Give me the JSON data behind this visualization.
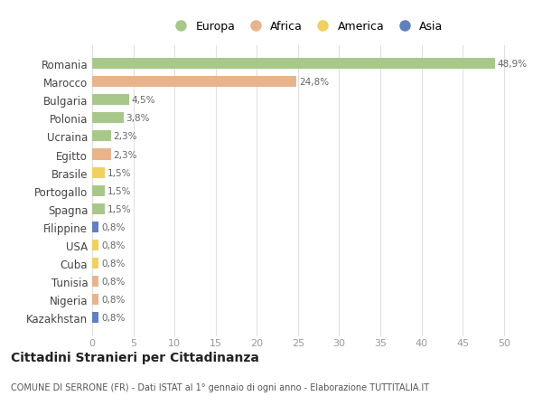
{
  "countries": [
    "Romania",
    "Marocco",
    "Bulgaria",
    "Polonia",
    "Ucraina",
    "Egitto",
    "Brasile",
    "Portogallo",
    "Spagna",
    "Filippine",
    "USA",
    "Cuba",
    "Tunisia",
    "Nigeria",
    "Kazakhstan"
  ],
  "values": [
    48.9,
    24.8,
    4.5,
    3.8,
    2.3,
    2.3,
    1.5,
    1.5,
    1.5,
    0.8,
    0.8,
    0.8,
    0.8,
    0.8,
    0.8
  ],
  "labels": [
    "48,9%",
    "24,8%",
    "4,5%",
    "3,8%",
    "2,3%",
    "2,3%",
    "1,5%",
    "1,5%",
    "1,5%",
    "0,8%",
    "0,8%",
    "0,8%",
    "0,8%",
    "0,8%",
    "0,8%"
  ],
  "colors": [
    "#a8c88a",
    "#e8b48c",
    "#a8c88a",
    "#a8c88a",
    "#a8c88a",
    "#e8b48c",
    "#f0d060",
    "#a8c88a",
    "#a8c88a",
    "#6080c0",
    "#f0d060",
    "#f0d060",
    "#e8b48c",
    "#e8b48c",
    "#6080c0"
  ],
  "legend_labels": [
    "Europa",
    "Africa",
    "America",
    "Asia"
  ],
  "legend_colors": [
    "#a8c88a",
    "#e8b48c",
    "#f0d060",
    "#6080c0"
  ],
  "xlim": [
    0,
    52
  ],
  "xticks": [
    0,
    5,
    10,
    15,
    20,
    25,
    30,
    35,
    40,
    45,
    50
  ],
  "title": "Cittadini Stranieri per Cittadinanza",
  "subtitle": "COMUNE DI SERRONE (FR) - Dati ISTAT al 1° gennaio di ogni anno - Elaborazione TUTTITALIA.IT",
  "bg_color": "#ffffff",
  "grid_color": "#e0e0e0",
  "bar_height": 0.6
}
